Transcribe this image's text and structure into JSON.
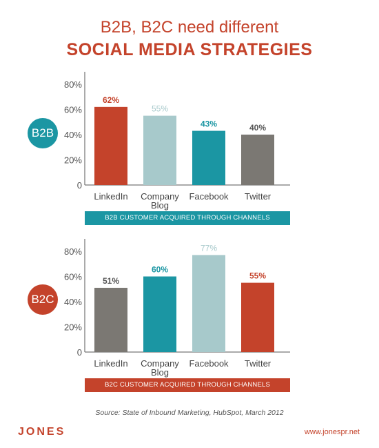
{
  "header": {
    "line1": "B2B, B2C need different",
    "line2": "SOCIAL MEDIA STRATEGIES"
  },
  "colors": {
    "red": "#c4432b",
    "teal": "#1b96a3",
    "light_teal": "#a7c9cb",
    "gray": "#7b7873",
    "b2c_badge": "#c4432b",
    "b2c_caption": "#c4432b"
  },
  "chart_data": [
    {
      "type": "bar",
      "badge": "B2B",
      "categories": [
        [
          "LinkedIn"
        ],
        [
          "Company",
          "Blog"
        ],
        [
          "Facebook"
        ],
        [
          "Twitter"
        ]
      ],
      "values": [
        62,
        55,
        43,
        40
      ],
      "value_labels": [
        "62%",
        "55%",
        "43%",
        "40%"
      ],
      "bar_colors": [
        "#c4432b",
        "#a7c9cb",
        "#1b96a3",
        "#7b7873"
      ],
      "yticks": [
        "0",
        "20%",
        "40%",
        "60%",
        "80%"
      ],
      "ylim": [
        0,
        80
      ],
      "caption": "B2B CUSTOMER ACQUIRED THROUGH CHANNELS",
      "grid": false
    },
    {
      "type": "bar",
      "badge": "B2C",
      "categories": [
        [
          "LinkedIn"
        ],
        [
          "Company",
          "Blog"
        ],
        [
          "Facebook"
        ],
        [
          "Twitter"
        ]
      ],
      "values": [
        51,
        60,
        77,
        55
      ],
      "value_labels": [
        "51%",
        "60%",
        "77%",
        "55%"
      ],
      "bar_colors": [
        "#7b7873",
        "#1b96a3",
        "#a7c9cb",
        "#c4432b"
      ],
      "yticks": [
        "0",
        "20%",
        "40%",
        "60%",
        "80%"
      ],
      "ylim": [
        0,
        80
      ],
      "caption": "B2C CUSTOMER ACQUIRED THROUGH CHANNELS",
      "grid": false
    }
  ],
  "footer": {
    "source": "Source: State of Inbound Marketing, HubSpot, March 2012",
    "logo": "JONES",
    "site": "www.jonespr.net"
  }
}
